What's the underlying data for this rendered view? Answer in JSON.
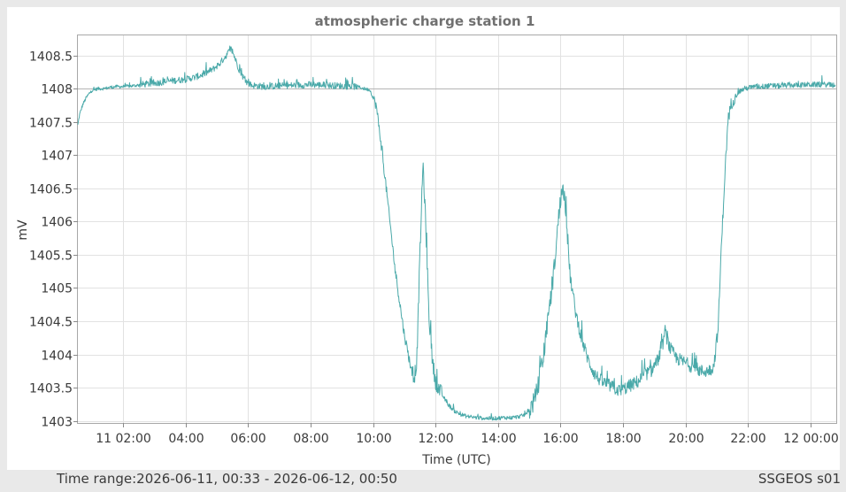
{
  "footer": {
    "time_range_label": "Time range:",
    "time_range_value": "2026-06-11, 00:33 - 2026-06-12, 00:50",
    "station_id": "SSGEOS s01"
  },
  "chart_data": {
    "type": "line",
    "title": "atmospheric charge station 1",
    "xlabel": "Time (UTC)",
    "ylabel": "mV",
    "grid": true,
    "line_color": "#4aa9a9",
    "x_unit": "hours since 2026-06-11 00:00 UTC",
    "xlim": [
      0.55,
      24.83
    ],
    "ylim": [
      1402.97,
      1408.8
    ],
    "x_ticks": [
      {
        "v": 2,
        "label": "11 02:00"
      },
      {
        "v": 4,
        "label": "04:00"
      },
      {
        "v": 6,
        "label": "06:00"
      },
      {
        "v": 8,
        "label": "08:00"
      },
      {
        "v": 10,
        "label": "10:00"
      },
      {
        "v": 12,
        "label": "12:00"
      },
      {
        "v": 14,
        "label": "14:00"
      },
      {
        "v": 16,
        "label": "16:00"
      },
      {
        "v": 18,
        "label": "18:00"
      },
      {
        "v": 20,
        "label": "20:00"
      },
      {
        "v": 22,
        "label": "22:00"
      },
      {
        "v": 24,
        "label": "12 00:00"
      }
    ],
    "y_ticks": [
      {
        "v": 1403,
        "label": "1403"
      },
      {
        "v": 1403.5,
        "label": "1403.5"
      },
      {
        "v": 1404,
        "label": "1404"
      },
      {
        "v": 1404.5,
        "label": "1404.5"
      },
      {
        "v": 1405,
        "label": "1405"
      },
      {
        "v": 1405.5,
        "label": "1405.5"
      },
      {
        "v": 1406,
        "label": "1406"
      },
      {
        "v": 1406.5,
        "label": "1406.5"
      },
      {
        "v": 1407,
        "label": "1407"
      },
      {
        "v": 1407.5,
        "label": "1407.5"
      },
      {
        "v": 1408,
        "label": "1408"
      },
      {
        "v": 1408.5,
        "label": "1408.5"
      }
    ],
    "series": [
      {
        "x": [
          0.55,
          0.6,
          0.7,
          0.8,
          0.9,
          1.0,
          1.2,
          1.4,
          1.6,
          1.8,
          2.0,
          2.3,
          2.6,
          3.0,
          3.3,
          3.6,
          4.0,
          4.3,
          4.6,
          4.9,
          5.1,
          5.3,
          5.45,
          5.55,
          5.7,
          5.9,
          6.1,
          6.5,
          7.0,
          7.5,
          8.0,
          8.5,
          9.0,
          9.5,
          9.7,
          9.9,
          10.1,
          10.25,
          10.4,
          10.55,
          10.7,
          10.85,
          11.0,
          11.15,
          11.3,
          11.4,
          11.5,
          11.6,
          11.7,
          11.8,
          11.9,
          12.0,
          12.2,
          12.4,
          12.6,
          12.8,
          13.0,
          13.3,
          13.6,
          13.9,
          14.2,
          14.5,
          14.8,
          15.0,
          15.2,
          15.4,
          15.6,
          15.8,
          15.9,
          16.0,
          16.1,
          16.2,
          16.3,
          16.5,
          16.7,
          16.9,
          17.1,
          17.3,
          17.5,
          17.7,
          17.9,
          18.1,
          18.3,
          18.5,
          18.7,
          18.9,
          19.1,
          19.25,
          19.35,
          19.5,
          19.7,
          19.9,
          20.1,
          20.3,
          20.5,
          20.7,
          20.9,
          21.05,
          21.15,
          21.25,
          21.35,
          21.45,
          21.55,
          21.7,
          21.9,
          22.1,
          22.4,
          22.7,
          23.0,
          23.3,
          23.6,
          23.9,
          24.2,
          24.5,
          24.8
        ],
        "y": [
          1407.45,
          1407.6,
          1407.75,
          1407.85,
          1407.92,
          1407.97,
          1408.0,
          1408.0,
          1408.02,
          1408.03,
          1408.03,
          1408.04,
          1408.06,
          1408.08,
          1408.1,
          1408.12,
          1408.14,
          1408.17,
          1408.22,
          1408.3,
          1408.38,
          1408.5,
          1408.6,
          1408.5,
          1408.3,
          1408.12,
          1408.05,
          1408.03,
          1408.04,
          1408.05,
          1408.06,
          1408.05,
          1408.04,
          1408.03,
          1408.0,
          1407.98,
          1407.75,
          1407.2,
          1406.6,
          1405.95,
          1405.3,
          1404.8,
          1404.3,
          1403.95,
          1403.6,
          1403.9,
          1405.5,
          1406.9,
          1405.8,
          1404.5,
          1403.9,
          1403.6,
          1403.4,
          1403.25,
          1403.15,
          1403.1,
          1403.07,
          1403.05,
          1403.04,
          1403.04,
          1403.05,
          1403.05,
          1403.08,
          1403.15,
          1403.35,
          1403.8,
          1404.5,
          1405.3,
          1405.85,
          1406.35,
          1406.5,
          1406.0,
          1405.2,
          1404.6,
          1404.2,
          1403.9,
          1403.7,
          1403.6,
          1403.55,
          1403.5,
          1403.45,
          1403.5,
          1403.55,
          1403.6,
          1403.7,
          1403.75,
          1403.9,
          1404.1,
          1404.35,
          1404.1,
          1403.95,
          1403.9,
          1403.85,
          1403.8,
          1403.75,
          1403.75,
          1403.8,
          1404.4,
          1405.6,
          1406.6,
          1407.4,
          1407.75,
          1407.85,
          1407.95,
          1408.0,
          1408.02,
          1408.03,
          1408.04,
          1408.04,
          1408.05,
          1408.05,
          1408.06,
          1408.06,
          1408.06,
          1408.05
        ]
      }
    ]
  }
}
